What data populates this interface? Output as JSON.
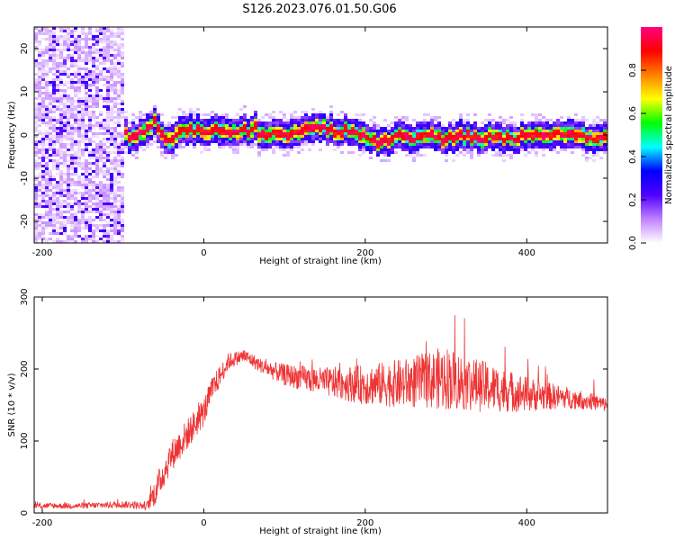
{
  "title": "S126.2023.076.01.50.G06",
  "chart_data": [
    {
      "type": "heatmap",
      "xlabel": "Height of straight line (km)",
      "ylabel": "Frequency (Hz)",
      "xlim": [
        -210,
        500
      ],
      "ylim": [
        -25,
        25
      ],
      "xticks": [
        -200,
        0,
        200,
        400
      ],
      "yticks": [
        -20,
        -10,
        0,
        10,
        20
      ],
      "colorbar": {
        "label": "Normalized spectral amplitude",
        "range": [
          0,
          1
        ],
        "ticks": [
          "0.0",
          "0.2",
          "0.4",
          "0.6",
          "0.8"
        ],
        "tick_values": [
          0,
          0.2,
          0.4,
          0.6,
          0.8
        ],
        "colors": [
          "#ffffff",
          "#c080ff",
          "#5000ff",
          "#0000ff",
          "#00ffff",
          "#00ff00",
          "#ffff00",
          "#ff8000",
          "#ff0000",
          "#ff0080"
        ]
      },
      "noise_region_x": [
        -210,
        -100
      ],
      "ridge": {
        "x": [
          -100,
          -90,
          -80,
          -70,
          -60,
          -50,
          -45,
          -40,
          -30,
          -20,
          0,
          20,
          40,
          60,
          65,
          70,
          80,
          100,
          120,
          140,
          160,
          180,
          200,
          210,
          220,
          230,
          240,
          260,
          280,
          300,
          320,
          340,
          360,
          380,
          400,
          420,
          440,
          460,
          480,
          500
        ],
        "y": [
          1,
          -1,
          0,
          1,
          3,
          0,
          -2,
          -1,
          1,
          1,
          1,
          1,
          1,
          1,
          2,
          0,
          0,
          0,
          1,
          2,
          1,
          1,
          0,
          -1,
          -2,
          -1,
          0,
          -1,
          0,
          -1,
          0,
          -1,
          0,
          -1,
          0,
          0,
          0,
          0,
          -1,
          0
        ]
      }
    },
    {
      "type": "line",
      "xlabel": "Height of straight line (km)",
      "ylabel": "SNR (10 * v/v)",
      "xlim": [
        -210,
        500
      ],
      "ylim": [
        0,
        300
      ],
      "xticks": [
        -200,
        0,
        200,
        400
      ],
      "yticks": [
        0,
        100,
        200,
        300
      ],
      "color": "#ee3333",
      "series": [
        {
          "x": [
            -210,
            -150,
            -100,
            -70,
            -60,
            -40,
            -20,
            0,
            10,
            20,
            30,
            40,
            50,
            60,
            70,
            80,
            100,
            150,
            200,
            250,
            280,
            300,
            320,
            350,
            400,
            450,
            480,
            500
          ],
          "y": [
            10,
            10,
            12,
            10,
            30,
            80,
            110,
            140,
            170,
            190,
            210,
            215,
            218,
            212,
            205,
            200,
            192,
            182,
            178,
            180,
            185,
            188,
            182,
            175,
            165,
            160,
            155,
            150
          ],
          "spread": [
            4,
            4,
            5,
            6,
            20,
            22,
            22,
            20,
            18,
            15,
            12,
            10,
            10,
            10,
            10,
            12,
            15,
            20,
            28,
            35,
            40,
            45,
            40,
            35,
            25,
            15,
            12,
            10
          ]
        }
      ]
    }
  ]
}
